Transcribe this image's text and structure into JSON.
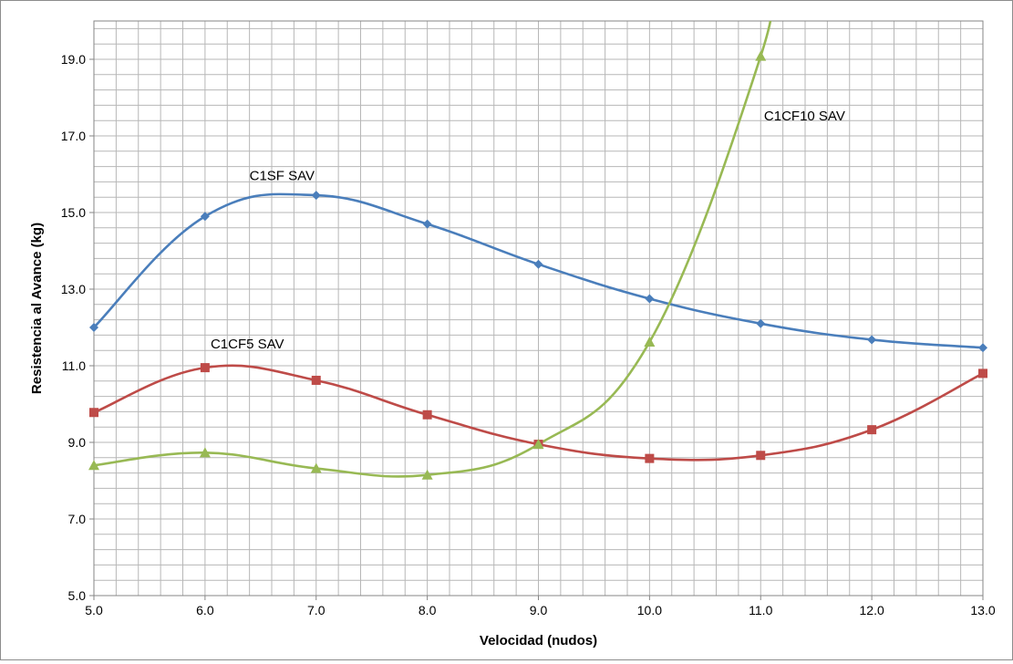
{
  "chart_data": {
    "type": "line",
    "title": "",
    "xlabel": "Velocidad (nudos)",
    "ylabel": "Resistencia al Avance (kg)",
    "xlim": [
      5.0,
      13.0
    ],
    "ylim": [
      5.0,
      20.0
    ],
    "x_ticks": [
      "5.0",
      "6.0",
      "7.0",
      "8.0",
      "9.0",
      "10.0",
      "11.0",
      "12.0",
      "13.0"
    ],
    "y_ticks": [
      "5.0",
      "7.0",
      "9.0",
      "11.0",
      "13.0",
      "15.0",
      "17.0",
      "19.0"
    ],
    "grid": true,
    "legend": "none (series labeled directly on the plot)",
    "series": [
      {
        "name": "C1SF SAV",
        "color": "#4a7ebb",
        "marker": "diamond",
        "x": [
          5,
          6,
          7,
          8,
          9,
          10,
          11,
          12,
          13
        ],
        "y": [
          12.0,
          14.9,
          15.45,
          14.7,
          13.65,
          12.75,
          12.1,
          11.68,
          11.47
        ]
      },
      {
        "name": "C1CF5 SAV",
        "color": "#be4b48",
        "marker": "square",
        "x": [
          5,
          6,
          7,
          8,
          9,
          10,
          11,
          12,
          13
        ],
        "y": [
          9.78,
          10.95,
          10.62,
          9.72,
          8.95,
          8.58,
          8.66,
          9.33,
          10.8
        ]
      },
      {
        "name": "C1CF10 SAV",
        "color": "#98b954",
        "marker": "triangle",
        "x": [
          5,
          6,
          7,
          8,
          9,
          10,
          11
        ],
        "y": [
          8.4,
          8.73,
          8.32,
          8.15,
          8.95,
          11.62,
          19.08
        ]
      }
    ]
  }
}
